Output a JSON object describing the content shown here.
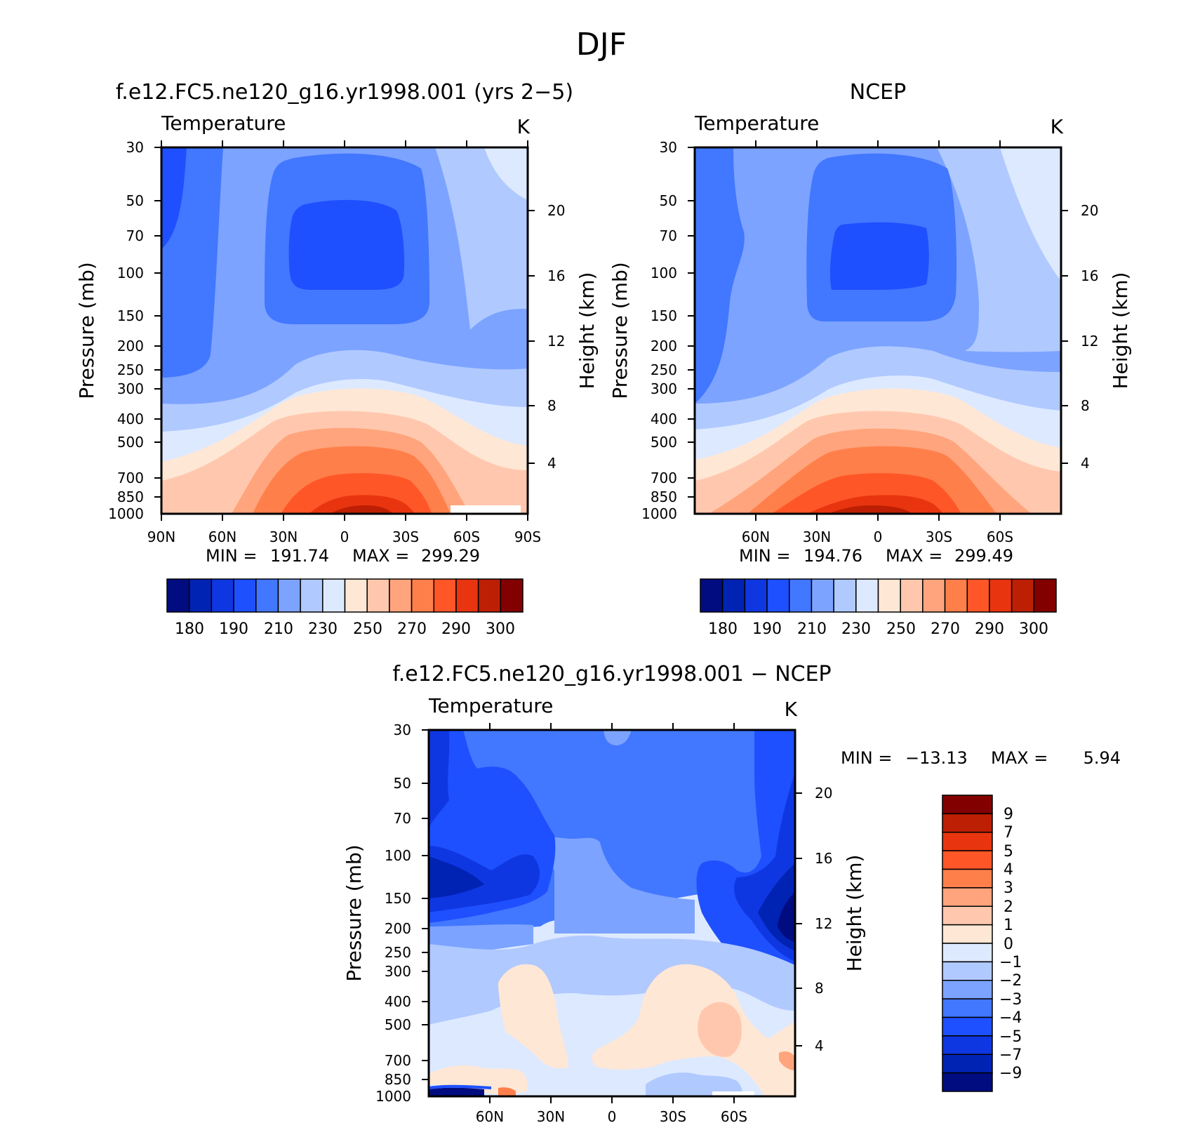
{
  "page": {
    "title": "DJF"
  },
  "palette": {
    "abs": [
      "#000c7f",
      "#0023b4",
      "#0f37e1",
      "#1e50ff",
      "#4277ff",
      "#7ca3ff",
      "#b0c9ff",
      "#dde9ff",
      "#ffe7d5",
      "#ffc8ae",
      "#ffa47c",
      "#ff7f4a",
      "#ff5628",
      "#e8350f",
      "#bc1f04",
      "#830000"
    ],
    "diff": [
      "#000c7f",
      "#0023b4",
      "#0f37e1",
      "#1e50ff",
      "#4277ff",
      "#7ca3ff",
      "#b0c9ff",
      "#dde9ff",
      "#ffe7d5",
      "#ffc8ae",
      "#ffa47c",
      "#ff7f4a",
      "#ff5628",
      "#e8350f",
      "#bc1f04",
      "#830000"
    ]
  },
  "chart_data": [
    {
      "id": "model",
      "type": "contour",
      "title": "f.e12.FC5.ne120_g16.yr1998.001 (yrs 2−5)",
      "variable": "Temperature",
      "units": "K",
      "ylabel": "Pressure (mb)",
      "y2label": "Height (km)",
      "xticks": [
        "90N",
        "60N",
        "30N",
        "0",
        "30S",
        "60S",
        "90S"
      ],
      "yticks": [
        "30",
        "50",
        "70",
        "100",
        "150",
        "200",
        "250",
        "300",
        "400",
        "500",
        "700",
        "850",
        "1000"
      ],
      "y2ticks": [
        "20",
        "16",
        "12",
        "8",
        "4"
      ],
      "min_label": "MIN =",
      "min": "191.74",
      "max_label": "MAX =",
      "max": "299.29",
      "cb_labels": [
        "180",
        "190",
        "210",
        "230",
        "250",
        "270",
        "290",
        "300"
      ],
      "levels": [
        210,
        215,
        220,
        225,
        230,
        240,
        245,
        250,
        255,
        260,
        265,
        270,
        275,
        280,
        285,
        290
      ],
      "xlim": [
        -90,
        90
      ],
      "ylim": [
        1000,
        30
      ]
    },
    {
      "id": "obs",
      "type": "contour",
      "title": "NCEP",
      "variable": "Temperature",
      "units": "K",
      "ylabel": "Pressure (mb)",
      "y2label": "Height (km)",
      "xticks": [
        "60N",
        "30N",
        "0",
        "30S",
        "60S"
      ],
      "yticks": [
        "30",
        "50",
        "70",
        "100",
        "150",
        "200",
        "250",
        "300",
        "400",
        "500",
        "700",
        "850",
        "1000"
      ],
      "y2ticks": [
        "20",
        "16",
        "12",
        "8",
        "4"
      ],
      "min_label": "MIN =",
      "min": "194.76",
      "max_label": "MAX =",
      "max": "299.49",
      "cb_labels": [
        "180",
        "190",
        "210",
        "230",
        "250",
        "270",
        "290",
        "300"
      ],
      "levels": [
        210,
        215,
        220,
        225,
        230,
        240,
        245,
        250,
        255,
        260,
        265,
        270,
        275,
        280,
        285,
        290
      ],
      "xlim": [
        -90,
        90
      ],
      "ylim": [
        1000,
        30
      ]
    },
    {
      "id": "diff",
      "type": "contour",
      "title": "f.e12.FC5.ne120_g16.yr1998.001 − NCEP",
      "variable": "Temperature",
      "units": "K",
      "ylabel": "Pressure (mb)",
      "y2label": "Height (km)",
      "xticks": [
        "60N",
        "30N",
        "0",
        "30S",
        "60S"
      ],
      "yticks": [
        "30",
        "50",
        "70",
        "100",
        "150",
        "200",
        "250",
        "300",
        "400",
        "500",
        "700",
        "850",
        "1000"
      ],
      "y2ticks": [
        "20",
        "16",
        "12",
        "8",
        "4"
      ],
      "min_label": "MIN =",
      "min": "−13.13",
      "max_label": "MAX =",
      "max": "5.94",
      "cb_labels": [
        "9",
        "7",
        "5",
        "4",
        "3",
        "2",
        "1",
        "0",
        "−1",
        "−2",
        "−3",
        "−4",
        "−5",
        "−7",
        "−9"
      ],
      "levels": [
        -9,
        -7,
        -5,
        -4,
        -3,
        -2,
        -1,
        0,
        1,
        2,
        3,
        4,
        5,
        7,
        9
      ],
      "xlim": [
        -90,
        90
      ],
      "ylim": [
        1000,
        30
      ]
    }
  ]
}
